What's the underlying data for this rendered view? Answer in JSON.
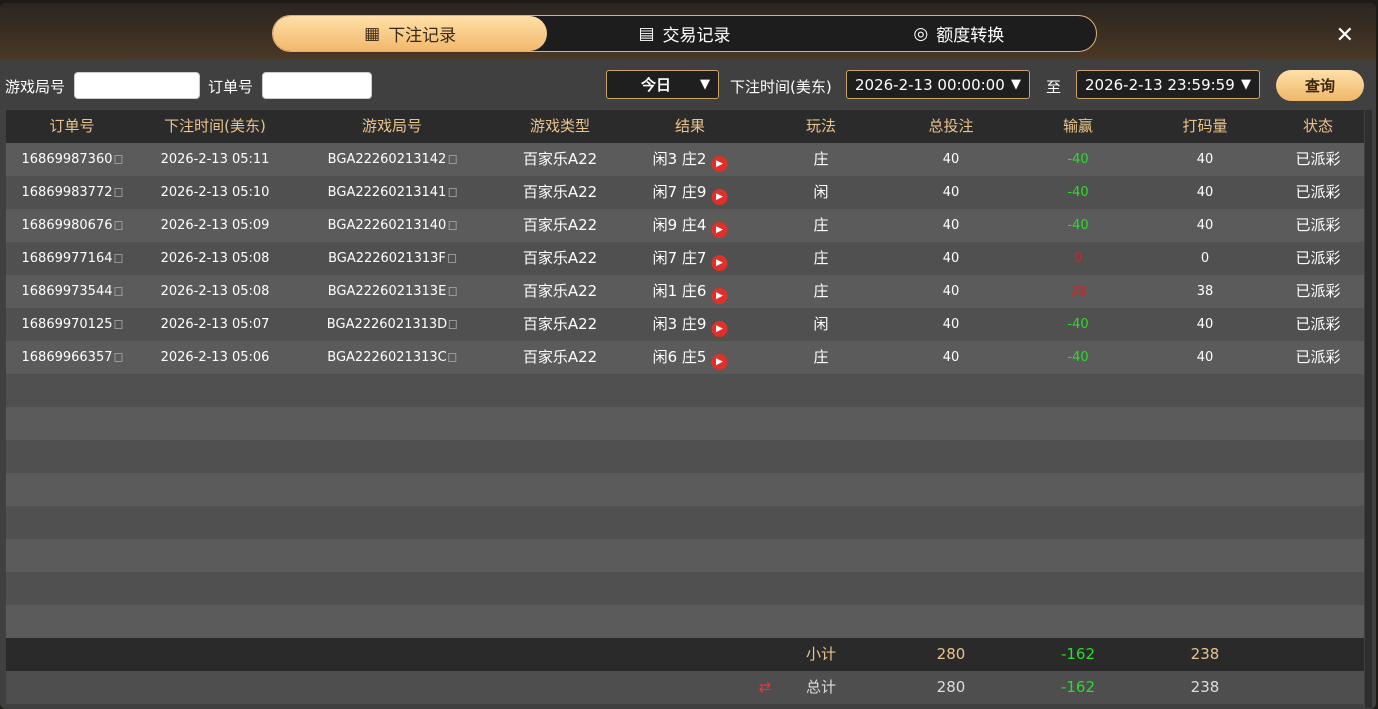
{
  "tabs": [
    {
      "label": "下注记录",
      "icon": "calendar-icon",
      "active": true
    },
    {
      "label": "交易记录",
      "icon": "clipboard-icon"
    },
    {
      "label": "额度转换",
      "icon": "coins-icon"
    }
  ],
  "filters": {
    "game_round_label": "游戏局号",
    "game_round_value": "",
    "order_label": "订单号",
    "order_value": "",
    "period": "今日",
    "time_label": "下注时间(美东)",
    "start": "2026-2-13 00:00:00",
    "to_label": "至",
    "end": "2026-2-13 23:59:59",
    "query": "查询"
  },
  "columns": [
    "订单号",
    "下注时间(美东)",
    "游戏局号",
    "游戏类型",
    "结果",
    "玩法",
    "总投注",
    "输赢",
    "打码量",
    "状态"
  ],
  "rows": [
    [
      "16869987360",
      "2026-2-13 05:11",
      "BGA22260213142",
      "百家乐A22",
      "闲3 庄2",
      "庄",
      "40",
      "-40",
      "40",
      "已派彩"
    ],
    [
      "16869983772",
      "2026-2-13 05:10",
      "BGA22260213141",
      "百家乐A22",
      "闲7 庄9",
      "闲",
      "40",
      "-40",
      "40",
      "已派彩"
    ],
    [
      "16869980676",
      "2026-2-13 05:09",
      "BGA22260213140",
      "百家乐A22",
      "闲9 庄4",
      "庄",
      "40",
      "-40",
      "40",
      "已派彩"
    ],
    [
      "16869977164",
      "2026-2-13 05:08",
      "BGA2226021313F",
      "百家乐A22",
      "闲7 庄7",
      "庄",
      "40",
      "0",
      "0",
      "已派彩"
    ],
    [
      "16869973544",
      "2026-2-13 05:08",
      "BGA2226021313E",
      "百家乐A22",
      "闲1 庄6",
      "庄",
      "40",
      "38",
      "38",
      "已派彩"
    ],
    [
      "16869970125",
      "2026-2-13 05:07",
      "BGA2226021313D",
      "百家乐A22",
      "闲3 庄9",
      "闲",
      "40",
      "-40",
      "40",
      "已派彩"
    ],
    [
      "16869966357",
      "2026-2-13 05:06",
      "BGA2226021313C",
      "百家乐A22",
      "闲6 庄5",
      "庄",
      "40",
      "-40",
      "40",
      "已派彩"
    ]
  ],
  "subtotal": {
    "label": "小计",
    "bet": "280",
    "winloss": "-162",
    "turnover": "238"
  },
  "total": {
    "label": "总计",
    "bet": "280",
    "winloss": "-162",
    "turnover": "238",
    "icon": "refresh-icon"
  },
  "colors": {
    "accent": "#f2b86c",
    "loss": "#2bdc2b",
    "win": "#d62222"
  }
}
